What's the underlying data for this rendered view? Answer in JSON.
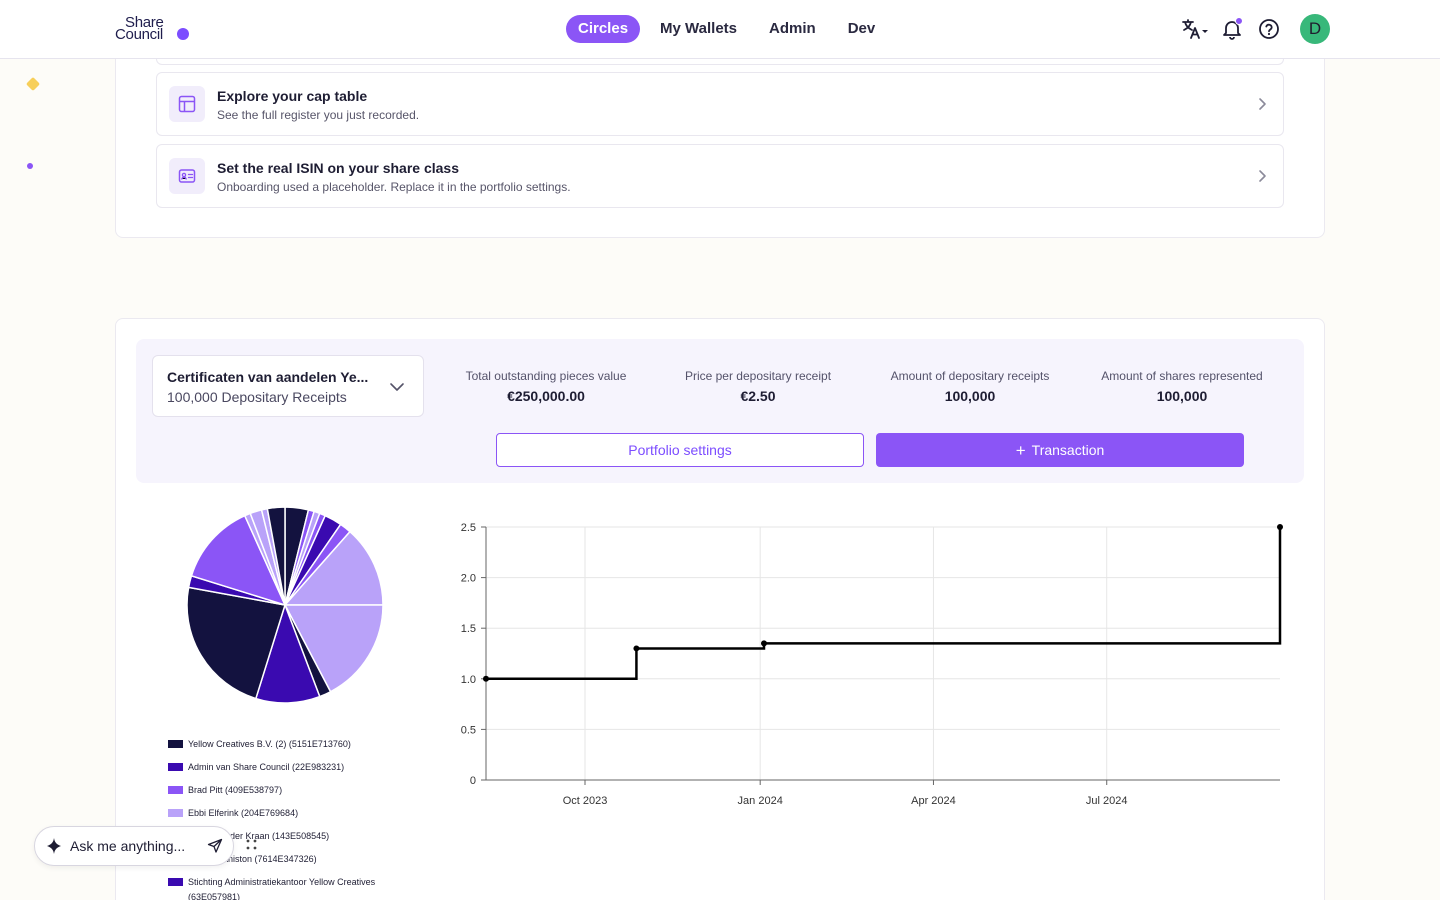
{
  "header": {
    "logo_line1": "Share",
    "logo_line2": "Council",
    "nav": [
      {
        "label": "Circles",
        "active": true
      },
      {
        "label": "My Wallets",
        "active": false
      },
      {
        "label": "Admin",
        "active": false
      },
      {
        "label": "Dev",
        "active": false
      }
    ],
    "icons": [
      "translate-icon",
      "bell-icon",
      "help-icon"
    ],
    "avatar_initial": "D",
    "accent_color": "#8b55f6"
  },
  "tasks": [
    {
      "title": "Explore your cap table",
      "subtitle": "See the full register you just recorded.",
      "icon": "table-icon"
    },
    {
      "title": "Set the real ISIN on your share class",
      "subtitle": "Onboarding used a placeholder. Replace it in the portfolio settings.",
      "icon": "id-card-icon"
    }
  ],
  "portfolio": {
    "selector_title": "Certificaten van aandelen Ye...",
    "selector_subtitle": "100,000 Depositary Receipts",
    "stats": [
      {
        "label": "Total outstanding pieces value",
        "value": "€250,000.00"
      },
      {
        "label": "Price per depositary receipt",
        "value": "€2.50"
      },
      {
        "label": "Amount of depositary receipts",
        "value": "100,000"
      },
      {
        "label": "Amount of shares represented",
        "value": "100,000"
      }
    ],
    "settings_button": "Portfolio settings",
    "transaction_button": "Transaction"
  },
  "legend": [
    {
      "label": "Yellow Creatives B.V. (2) (5151E713760)",
      "color": "#13123f"
    },
    {
      "label": "Admin van Share Council (22E983231)",
      "color": "#3a0ab0"
    },
    {
      "label": "Brad Pitt (409E538797)",
      "color": "#8b55f6"
    },
    {
      "label": "Ebbi Elferink (204E769684)",
      "color": "#b9a2f9"
    },
    {
      "label": "Maria van der Kraan (143E508545)",
      "color": "#13123f"
    },
    {
      "label": "Jennifer Aniston (7614E347326)",
      "color": "#3a0ab0"
    },
    {
      "label": "Stichting Administratiekantoor Yellow Creatives (63E057981)",
      "color": "#3a0ab0"
    }
  ],
  "chart_data": {
    "type": "line",
    "step": true,
    "x": [
      "2023-08-10",
      "2023-10-28",
      "2024-01-03",
      "2024-09-30"
    ],
    "y": [
      1.0,
      1.3,
      1.35,
      2.5
    ],
    "xlim": [
      "2023-08-10",
      "2024-09-30"
    ],
    "ylim": [
      0,
      2.5
    ],
    "y_ticks": [
      "0",
      "0.5",
      "1.0",
      "1.5",
      "2.0",
      "2.5"
    ],
    "x_ticks": [
      {
        "label": "Oct 2023",
        "date": "2023-10-01"
      },
      {
        "label": "Jan 2024",
        "date": "2024-01-01"
      },
      {
        "label": "Apr 2024",
        "date": "2024-04-01"
      },
      {
        "label": "Jul 2024",
        "date": "2024-07-01"
      }
    ],
    "grid": true,
    "line_color": "#000000"
  },
  "pie_data": {
    "type": "pie",
    "values": [
      4,
      1,
      1,
      1,
      3,
      2,
      14,
      18,
      2,
      11,
      24,
      2,
      14,
      1,
      2,
      1,
      3
    ],
    "colors": [
      "#13123f",
      "#8b55f6",
      "#b9a2f9",
      "#8b55f6",
      "#3a0ab0",
      "#8b55f6",
      "#b9a2f9",
      "#b9a2f9",
      "#13123f",
      "#3a0ab0",
      "#13123f",
      "#3a0ab0",
      "#8b55f6",
      "#b9a2f9",
      "#b9a2f9",
      "#b9a2f9",
      "#13123f"
    ]
  },
  "assistant": {
    "placeholder": "Ask me anything..."
  }
}
